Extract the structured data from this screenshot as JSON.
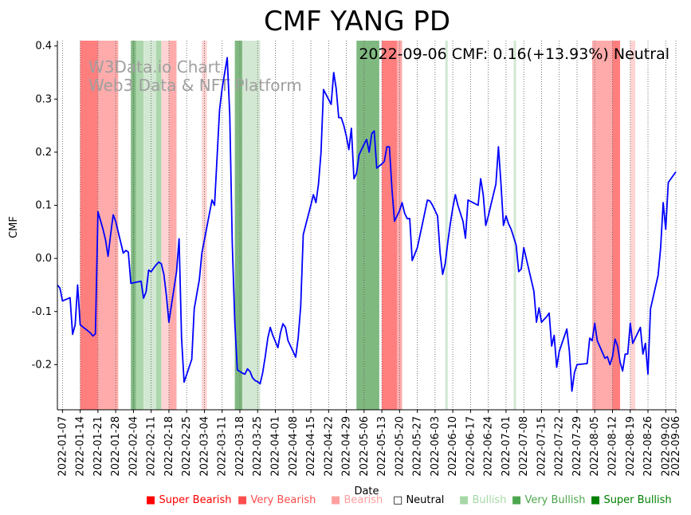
{
  "chart_data": {
    "type": "line",
    "title": "CMF YANG PD",
    "xlabel": "Date",
    "ylabel": "CMF",
    "ylim": [
      -0.285,
      0.41
    ],
    "xlim": [
      "2022-01-05",
      "2022-09-06"
    ],
    "grid": "vertical dotted",
    "y_ticks": [
      "-0.2",
      "-0.1",
      "0.0",
      "0.1",
      "0.2",
      "0.3",
      "0.4"
    ],
    "x_tick_labels": [
      "2022-01-07",
      "2022-01-14",
      "2022-01-21",
      "2022-01-28",
      "2022-02-04",
      "2022-02-11",
      "2022-02-18",
      "2022-02-25",
      "2022-03-04",
      "2022-03-11",
      "2022-03-18",
      "2022-03-25",
      "2022-04-01",
      "2022-04-08",
      "2022-04-15",
      "2022-04-22",
      "2022-04-29",
      "2022-05-06",
      "2022-05-13",
      "2022-05-20",
      "2022-05-27",
      "2022-06-03",
      "2022-06-10",
      "2022-06-17",
      "2022-06-24",
      "2022-07-01",
      "2022-07-08",
      "2022-07-15",
      "2022-07-22",
      "2022-07-29",
      "2022-08-05",
      "2022-08-12",
      "2022-08-19",
      "2022-08-26",
      "2022-09-02",
      "2022-09-06"
    ],
    "annotation": "2022-09-06 CMF: 0.16(+13.93%) Neutral",
    "watermark": [
      "W3Data.io Chart",
      "Web3 Data & NFT Platform"
    ],
    "series": [
      {
        "color": "#0000ff",
        "points": [
          [
            "2022-01-05",
            -0.05
          ],
          [
            "2022-01-06",
            -0.056
          ],
          [
            "2022-01-07",
            -0.08
          ],
          [
            "2022-01-09",
            -0.076
          ],
          [
            "2022-01-10",
            -0.074
          ],
          [
            "2022-01-11",
            -0.143
          ],
          [
            "2022-01-12",
            -0.125
          ],
          [
            "2022-01-13",
            -0.05
          ],
          [
            "2022-01-14",
            -0.125
          ],
          [
            "2022-01-18",
            -0.14
          ],
          [
            "2022-01-19",
            -0.146
          ],
          [
            "2022-01-20",
            -0.142
          ],
          [
            "2022-01-21",
            0.088
          ],
          [
            "2022-01-23",
            0.055
          ],
          [
            "2022-01-24",
            0.035
          ],
          [
            "2022-01-25",
            0.004
          ],
          [
            "2022-01-26",
            0.045
          ],
          [
            "2022-01-27",
            0.082
          ],
          [
            "2022-01-28",
            0.07
          ],
          [
            "2022-01-31",
            0.01
          ],
          [
            "2022-02-01",
            0.015
          ],
          [
            "2022-02-02",
            0.012
          ],
          [
            "2022-02-03",
            -0.047
          ],
          [
            "2022-02-07",
            -0.043
          ],
          [
            "2022-02-08",
            -0.075
          ],
          [
            "2022-02-09",
            -0.063
          ],
          [
            "2022-02-10",
            -0.022
          ],
          [
            "2022-02-11",
            -0.025
          ],
          [
            "2022-02-12",
            -0.018
          ],
          [
            "2022-02-13",
            -0.012
          ],
          [
            "2022-02-14",
            -0.007
          ],
          [
            "2022-02-15",
            -0.01
          ],
          [
            "2022-02-16",
            -0.03
          ],
          [
            "2022-02-17",
            -0.07
          ],
          [
            "2022-02-18",
            -0.12
          ],
          [
            "2022-02-21",
            -0.025
          ],
          [
            "2022-02-22",
            0.037
          ],
          [
            "2022-02-23",
            -0.15
          ],
          [
            "2022-02-24",
            -0.233
          ],
          [
            "2022-02-27",
            -0.19
          ],
          [
            "2022-02-28",
            -0.095
          ],
          [
            "2022-03-02",
            -0.04
          ],
          [
            "2022-03-03",
            0.01
          ],
          [
            "2022-03-07",
            0.11
          ],
          [
            "2022-03-08",
            0.1
          ],
          [
            "2022-03-10",
            0.28
          ],
          [
            "2022-03-11",
            0.32
          ],
          [
            "2022-03-13",
            0.378
          ],
          [
            "2022-03-14",
            0.27
          ],
          [
            "2022-03-15",
            0.03
          ],
          [
            "2022-03-16",
            -0.12
          ],
          [
            "2022-03-17",
            -0.21
          ],
          [
            "2022-03-19",
            -0.216
          ],
          [
            "2022-03-20",
            -0.218
          ],
          [
            "2022-03-21",
            -0.208
          ],
          [
            "2022-03-22",
            -0.213
          ],
          [
            "2022-03-23",
            -0.225
          ],
          [
            "2022-03-24",
            -0.23
          ],
          [
            "2022-03-25",
            -0.232
          ],
          [
            "2022-03-26",
            -0.236
          ],
          [
            "2022-03-27",
            -0.215
          ],
          [
            "2022-03-28",
            -0.185
          ],
          [
            "2022-03-29",
            -0.15
          ],
          [
            "2022-03-30",
            -0.13
          ],
          [
            "2022-03-31",
            -0.145
          ],
          [
            "2022-04-02",
            -0.168
          ],
          [
            "2022-04-03",
            -0.14
          ],
          [
            "2022-04-04",
            -0.123
          ],
          [
            "2022-04-05",
            -0.13
          ],
          [
            "2022-04-06",
            -0.155
          ],
          [
            "2022-04-07",
            -0.165
          ],
          [
            "2022-04-09",
            -0.186
          ],
          [
            "2022-04-10",
            -0.15
          ],
          [
            "2022-04-11",
            -0.09
          ],
          [
            "2022-04-12",
            0.045
          ],
          [
            "2022-04-15",
            0.1
          ],
          [
            "2022-04-16",
            0.12
          ],
          [
            "2022-04-17",
            0.105
          ],
          [
            "2022-04-18",
            0.14
          ],
          [
            "2022-04-19",
            0.2
          ],
          [
            "2022-04-20",
            0.318
          ],
          [
            "2022-04-23",
            0.29
          ],
          [
            "2022-04-24",
            0.35
          ],
          [
            "2022-04-25",
            0.32
          ],
          [
            "2022-04-26",
            0.265
          ],
          [
            "2022-04-27",
            0.265
          ],
          [
            "2022-04-28",
            0.25
          ],
          [
            "2022-04-29",
            0.23
          ],
          [
            "2022-04-30",
            0.205
          ],
          [
            "2022-05-01",
            0.245
          ],
          [
            "2022-05-02",
            0.15
          ],
          [
            "2022-05-03",
            0.16
          ],
          [
            "2022-05-04",
            0.195
          ],
          [
            "2022-05-06",
            0.215
          ],
          [
            "2022-05-07",
            0.224
          ],
          [
            "2022-05-08",
            0.2
          ],
          [
            "2022-05-09",
            0.235
          ],
          [
            "2022-05-10",
            0.24
          ],
          [
            "2022-05-11",
            0.17
          ],
          [
            "2022-05-13",
            0.178
          ],
          [
            "2022-05-14",
            0.183
          ],
          [
            "2022-05-15",
            0.21
          ],
          [
            "2022-05-16",
            0.21
          ],
          [
            "2022-05-17",
            0.13
          ],
          [
            "2022-05-18",
            0.07
          ],
          [
            "2022-05-20",
            0.09
          ],
          [
            "2022-05-21",
            0.105
          ],
          [
            "2022-05-22",
            0.085
          ],
          [
            "2022-05-23",
            0.075
          ],
          [
            "2022-05-24",
            0.075
          ],
          [
            "2022-05-25",
            -0.004
          ],
          [
            "2022-05-27",
            0.02
          ],
          [
            "2022-05-29",
            0.065
          ],
          [
            "2022-05-31",
            0.11
          ],
          [
            "2022-06-01",
            0.108
          ],
          [
            "2022-06-02",
            0.1
          ],
          [
            "2022-06-04",
            0.08
          ],
          [
            "2022-06-05",
            0.01
          ],
          [
            "2022-06-06",
            -0.03
          ],
          [
            "2022-06-07",
            -0.01
          ],
          [
            "2022-06-08",
            0.03
          ],
          [
            "2022-06-09",
            0.065
          ],
          [
            "2022-06-10",
            0.095
          ],
          [
            "2022-06-11",
            0.12
          ],
          [
            "2022-06-12",
            0.1
          ],
          [
            "2022-06-13",
            0.085
          ],
          [
            "2022-06-14",
            0.07
          ],
          [
            "2022-06-15",
            0.038
          ],
          [
            "2022-06-16",
            0.11
          ],
          [
            "2022-06-20",
            0.1
          ],
          [
            "2022-06-21",
            0.15
          ],
          [
            "2022-06-22",
            0.12
          ],
          [
            "2022-06-23",
            0.062
          ],
          [
            "2022-06-24",
            0.08
          ],
          [
            "2022-06-25",
            0.1
          ],
          [
            "2022-06-26",
            0.12
          ],
          [
            "2022-06-27",
            0.14
          ],
          [
            "2022-06-28",
            0.21
          ],
          [
            "2022-06-29",
            0.14
          ],
          [
            "2022-06-30",
            0.062
          ],
          [
            "2022-07-01",
            0.08
          ],
          [
            "2022-07-02",
            0.065
          ],
          [
            "2022-07-03",
            0.055
          ],
          [
            "2022-07-04",
            0.04
          ],
          [
            "2022-07-05",
            0.025
          ],
          [
            "2022-07-06",
            -0.025
          ],
          [
            "2022-07-07",
            -0.02
          ],
          [
            "2022-07-08",
            0.02
          ],
          [
            "2022-07-12",
            -0.062
          ],
          [
            "2022-07-13",
            -0.12
          ],
          [
            "2022-07-14",
            -0.093
          ],
          [
            "2022-07-15",
            -0.12
          ],
          [
            "2022-07-16",
            -0.115
          ],
          [
            "2022-07-17",
            -0.11
          ],
          [
            "2022-07-18",
            -0.103
          ],
          [
            "2022-07-19",
            -0.165
          ],
          [
            "2022-07-20",
            -0.145
          ],
          [
            "2022-07-21",
            -0.205
          ],
          [
            "2022-07-22",
            -0.175
          ],
          [
            "2022-07-25",
            -0.133
          ],
          [
            "2022-07-26",
            -0.175
          ],
          [
            "2022-07-27",
            -0.25
          ],
          [
            "2022-07-28",
            -0.215
          ],
          [
            "2022-07-29",
            -0.2
          ],
          [
            "2022-08-02",
            -0.198
          ],
          [
            "2022-08-03",
            -0.15
          ],
          [
            "2022-08-04",
            -0.155
          ],
          [
            "2022-08-05",
            -0.122
          ],
          [
            "2022-08-06",
            -0.155
          ],
          [
            "2022-08-09",
            -0.188
          ],
          [
            "2022-08-10",
            -0.185
          ],
          [
            "2022-08-11",
            -0.2
          ],
          [
            "2022-08-12",
            -0.185
          ],
          [
            "2022-08-13",
            -0.152
          ],
          [
            "2022-08-14",
            -0.165
          ],
          [
            "2022-08-15",
            -0.195
          ],
          [
            "2022-08-16",
            -0.212
          ],
          [
            "2022-08-17",
            -0.18
          ],
          [
            "2022-08-18",
            -0.18
          ],
          [
            "2022-08-19",
            -0.122
          ],
          [
            "2022-08-20",
            -0.16
          ],
          [
            "2022-08-23",
            -0.13
          ],
          [
            "2022-08-24",
            -0.18
          ],
          [
            "2022-08-25",
            -0.16
          ],
          [
            "2022-08-26",
            -0.218
          ],
          [
            "2022-08-27",
            -0.095
          ],
          [
            "2022-08-30",
            -0.032
          ],
          [
            "2022-08-31",
            0.02
          ],
          [
            "2022-09-01",
            0.105
          ],
          [
            "2022-09-02",
            0.055
          ],
          [
            "2022-09-03",
            0.143
          ],
          [
            "2022-09-06",
            0.163
          ]
        ]
      }
    ],
    "bands": [
      {
        "start": "2022-01-14",
        "end": "2022-01-21",
        "level": "very_bearish"
      },
      {
        "start": "2022-01-21",
        "end": "2022-01-29",
        "level": "bearish"
      },
      {
        "start": "2022-02-03",
        "end": "2022-02-05",
        "level": "very_bullish"
      },
      {
        "start": "2022-02-05",
        "end": "2022-02-08",
        "level": "bullish"
      },
      {
        "start": "2022-02-08",
        "end": "2022-02-13",
        "level": "bullish_light"
      },
      {
        "start": "2022-02-13",
        "end": "2022-02-15",
        "level": "bullish"
      },
      {
        "start": "2022-02-15",
        "end": "2022-02-18",
        "level": "bearish_light"
      },
      {
        "start": "2022-02-18",
        "end": "2022-02-21",
        "level": "bearish"
      },
      {
        "start": "2022-03-03",
        "end": "2022-03-05",
        "level": "bearish_light"
      },
      {
        "start": "2022-03-16",
        "end": "2022-03-19",
        "level": "very_bullish"
      },
      {
        "start": "2022-03-19",
        "end": "2022-03-26",
        "level": "bullish_light"
      },
      {
        "start": "2022-05-03",
        "end": "2022-05-12",
        "level": "very_bullish"
      },
      {
        "start": "2022-05-13",
        "end": "2022-05-19",
        "level": "very_bearish"
      },
      {
        "start": "2022-05-19",
        "end": "2022-05-21",
        "level": "bearish"
      },
      {
        "start": "2022-06-07",
        "end": "2022-06-08",
        "level": "bullish_light"
      },
      {
        "start": "2022-07-04",
        "end": "2022-07-05",
        "level": "bullish_light"
      },
      {
        "start": "2022-08-04",
        "end": "2022-08-12",
        "level": "bearish"
      },
      {
        "start": "2022-08-12",
        "end": "2022-08-15",
        "level": "very_bearish"
      },
      {
        "start": "2022-08-19",
        "end": "2022-08-21",
        "level": "bearish_light"
      }
    ],
    "band_colors": {
      "very_bearish": "#ff7e7e",
      "bearish": "#ffabab",
      "bearish_light": "#ffd3d3",
      "very_bullish": "#80b980",
      "bullish": "#acd6ac",
      "bullish_light": "#d3e8d3"
    },
    "legend": [
      {
        "label": "Super Bearish",
        "marker": "■",
        "color": "#ff0000"
      },
      {
        "label": "Very Bearish",
        "marker": "■",
        "color": "#ff4d4d"
      },
      {
        "label": "Bearish",
        "marker": "■",
        "color": "#ff9f9f"
      },
      {
        "label": "Neutral",
        "marker": "□",
        "color": "#000000"
      },
      {
        "label": "Bullish",
        "marker": "■",
        "color": "#a6d8a6"
      },
      {
        "label": "Very Bullish",
        "marker": "■",
        "color": "#4da64d"
      },
      {
        "label": "Super Bullish",
        "marker": "■",
        "color": "#008000"
      }
    ]
  }
}
